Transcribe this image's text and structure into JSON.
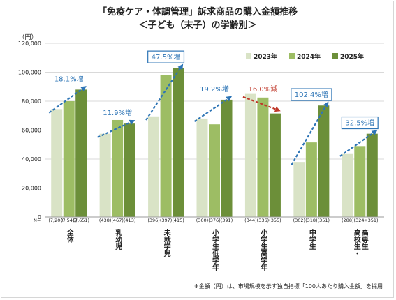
{
  "chart_data": {
    "type": "bar",
    "title": "「免疫ケア・体調管理」訴求商品の購入金額推移",
    "subtitle": "＜子ども（末子）の学齢別＞",
    "ylabel": "（円）",
    "ylim": [
      0,
      120000
    ],
    "yticks": [
      "0",
      "20,000",
      "40,000",
      "60,000",
      "80,000",
      "100,000",
      "120,000"
    ],
    "grid": true,
    "legend_position": "top-right",
    "categories": [
      "全体",
      "乳幼児",
      "未就学児",
      "小学生低学年",
      "小学生高学年",
      "中学生",
      "高校生・高専生"
    ],
    "category_lines": [
      [
        "全体"
      ],
      [
        "乳幼児"
      ],
      [
        "未就学児"
      ],
      [
        "小学生低学年"
      ],
      [
        "小学生高学年"
      ],
      [
        "中学生"
      ],
      [
        "高校生・",
        "高専生"
      ]
    ],
    "n_prefix": "N=",
    "sample_sizes": [
      [
        "(7,200)",
        "(7,546)",
        "(7,651)"
      ],
      [
        "(438)",
        "(467)",
        "(413)"
      ],
      [
        "(396)",
        "(397)",
        "(415)"
      ],
      [
        "(360)",
        "(376)",
        "(391)"
      ],
      [
        "(344)",
        "(336)",
        "(355)"
      ],
      [
        "(302)",
        "(318)",
        "(351)"
      ],
      [
        "(288)",
        "(324)",
        "(351)"
      ]
    ],
    "series": [
      {
        "name": "2023年",
        "color": "#d9e3c6",
        "values": [
          74500,
          57500,
          69500,
          68000,
          85000,
          38000,
          43500
        ]
      },
      {
        "name": "2024年",
        "color": "#9dbd64",
        "values": [
          80000,
          67000,
          98000,
          64000,
          82500,
          51500,
          49000
        ]
      },
      {
        "name": "2025年",
        "color": "#6c8f39",
        "values": [
          88000,
          64500,
          103000,
          81000,
          71500,
          77000,
          57500
        ]
      }
    ],
    "annotations": [
      {
        "text": "18.1%増",
        "category": "全体",
        "boxed": false,
        "color": "#2e75b6",
        "arrow_from": 72000,
        "arrow_to": 90000
      },
      {
        "text": "11.9%増",
        "category": "乳幼児",
        "boxed": false,
        "color": "#2e75b6",
        "arrow_from": 55000,
        "arrow_to": 66500
      },
      {
        "text": "47.5%増",
        "category": "未就学児",
        "boxed": true,
        "color": "#2e75b6",
        "arrow_from": 67000,
        "arrow_to": 105000
      },
      {
        "text": "19.2%増",
        "category": "小学生低学年",
        "boxed": false,
        "color": "#2e75b6",
        "arrow_from": 66000,
        "arrow_to": 83000
      },
      {
        "text": "16.0%減",
        "category": "小学生高学年",
        "boxed": false,
        "color": "#c0392b",
        "arrow_from": 83000,
        "arrow_to": 73500
      },
      {
        "text": "102.4%増",
        "category": "中学生",
        "boxed": true,
        "color": "#2e75b6",
        "arrow_from": 36000,
        "arrow_to": 79000
      },
      {
        "text": "32.5%増",
        "category": "高校生・高専生",
        "boxed": true,
        "color": "#2e75b6",
        "arrow_from": 42000,
        "arrow_to": 59500
      }
    ],
    "footnote": "※金額（円）は、市場規模を示す独自指標「100人あたり購入金額」を採用"
  }
}
